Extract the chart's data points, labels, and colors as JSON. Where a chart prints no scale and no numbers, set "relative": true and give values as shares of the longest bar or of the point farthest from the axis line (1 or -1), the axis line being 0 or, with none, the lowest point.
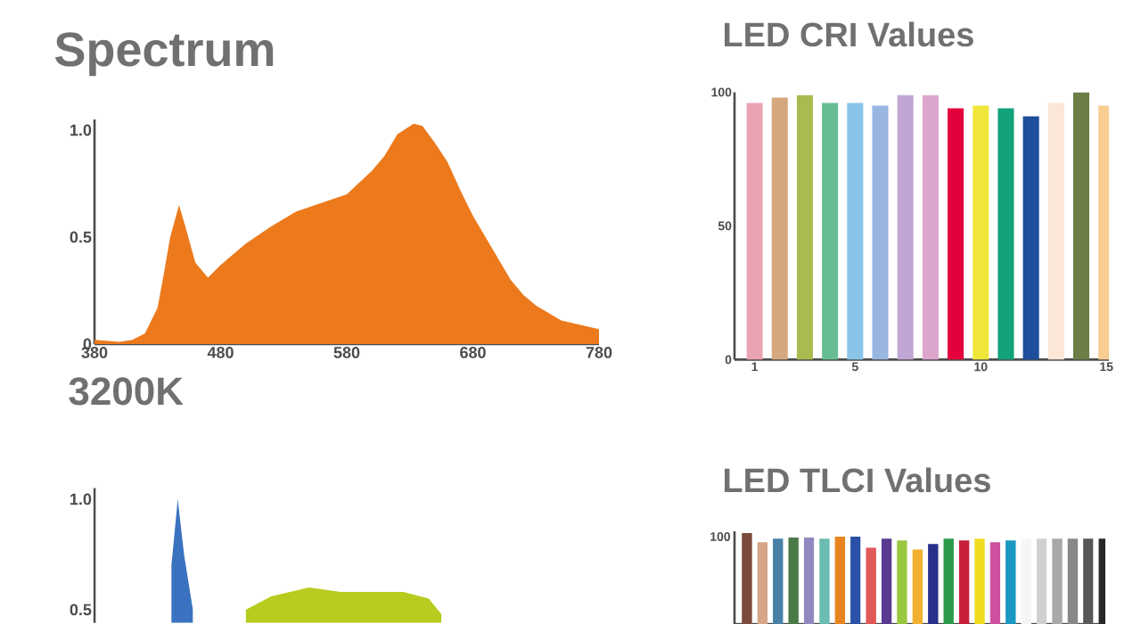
{
  "chart_data": [
    {
      "type": "area",
      "title": "Spectrum",
      "xlim": [
        380,
        780
      ],
      "ylim": [
        0,
        1.05
      ],
      "xticks": [
        380,
        480,
        580,
        680,
        780
      ],
      "yticks": [
        {
          "value": 0,
          "label": "0"
        },
        {
          "value": 0.5,
          "label": "0.5"
        },
        {
          "value": 1,
          "label": "1.0"
        }
      ],
      "series": [
        {
          "x": [
            380,
            400,
            410,
            420,
            430,
            435,
            440,
            447,
            452,
            460,
            470,
            480,
            490,
            500,
            520,
            540,
            560,
            580,
            600,
            610,
            620,
            633,
            640,
            650,
            660,
            670,
            680,
            690,
            700,
            710,
            720,
            730,
            750,
            765,
            780
          ],
          "values": [
            0.02,
            0.01,
            0.02,
            0.05,
            0.17,
            0.33,
            0.5,
            0.65,
            0.55,
            0.38,
            0.31,
            0.37,
            0.42,
            0.47,
            0.55,
            0.62,
            0.66,
            0.7,
            0.81,
            0.88,
            0.98,
            1.03,
            1.02,
            0.94,
            0.85,
            0.72,
            0.6,
            0.5,
            0.4,
            0.3,
            0.23,
            0.18,
            0.11,
            0.09,
            0.07
          ],
          "color": "#ec7a1c"
        }
      ]
    },
    {
      "type": "bar",
      "title": "LED CRI Values",
      "categories": [
        "1",
        null,
        null,
        null,
        "5",
        null,
        null,
        null,
        null,
        "10",
        null,
        null,
        null,
        null,
        "15"
      ],
      "ylim": [
        0,
        100
      ],
      "yticks": [
        0,
        50,
        100
      ],
      "values": [
        96,
        98,
        99,
        96,
        96,
        95,
        99,
        99,
        94,
        95,
        94,
        91,
        96,
        100,
        95
      ],
      "colors": [
        "#eaa3b2",
        "#d4a77e",
        "#a8bb50",
        "#66bd92",
        "#8ac5e8",
        "#98b6e0",
        "#c0a6d4",
        "#dca6cc",
        "#e4003c",
        "#f0e63a",
        "#12a37a",
        "#1e4e9c",
        "#fbe6d8",
        "#6a7e45",
        "#f9cc92"
      ]
    },
    {
      "type": "area",
      "title": "3200K",
      "xlim": [
        380,
        780
      ],
      "ylim": [
        0.44,
        1.05
      ],
      "yticks": [
        {
          "value": 0.5,
          "label": "0.5"
        },
        {
          "value": 1,
          "label": "1.0"
        }
      ],
      "tick_labels": "y",
      "series": [
        {
          "x": [
            441,
            446,
            451,
            458
          ],
          "values": [
            0.7,
            1.0,
            0.75,
            0.5
          ],
          "color": "#3a72c0"
        },
        {
          "x": [
            500,
            520,
            550,
            575,
            600,
            625,
            645,
            655
          ],
          "values": [
            0.5,
            0.56,
            0.6,
            0.58,
            0.58,
            0.58,
            0.55,
            0.48
          ],
          "color": "#b8cc20"
        }
      ]
    },
    {
      "type": "bar",
      "title": "LED TLCI Values",
      "categories": [
        null,
        null,
        null,
        null,
        null,
        null,
        null,
        null,
        null,
        null,
        null,
        null,
        null,
        null,
        null,
        null,
        null,
        null,
        null,
        null,
        null,
        null,
        null,
        null
      ],
      "relative": true,
      "annotations": [
        "100"
      ],
      "values": [
        1,
        0.9,
        0.94,
        0.95,
        0.95,
        0.94,
        0.96,
        0.96,
        0.84,
        0.94,
        0.92,
        0.82,
        0.88,
        0.94,
        0.92,
        0.94,
        0.9,
        0.92,
        0.94,
        0.94,
        0.94,
        0.94,
        0.94,
        0.94
      ],
      "colors": [
        "#7a4a3a",
        "#d6a488",
        "#4a80a8",
        "#4a7a48",
        "#9088c0",
        "#6abcb0",
        "#e8841e",
        "#2a50a8",
        "#e05858",
        "#5a3a90",
        "#98c840",
        "#f0b030",
        "#28308a",
        "#2a9a48",
        "#c8203a",
        "#f0dc20",
        "#d050a0",
        "#1a98c0",
        "#f6f6f6",
        "#d0d0d0",
        "#a8a8a8",
        "#888888",
        "#585858",
        "#282828"
      ]
    }
  ]
}
